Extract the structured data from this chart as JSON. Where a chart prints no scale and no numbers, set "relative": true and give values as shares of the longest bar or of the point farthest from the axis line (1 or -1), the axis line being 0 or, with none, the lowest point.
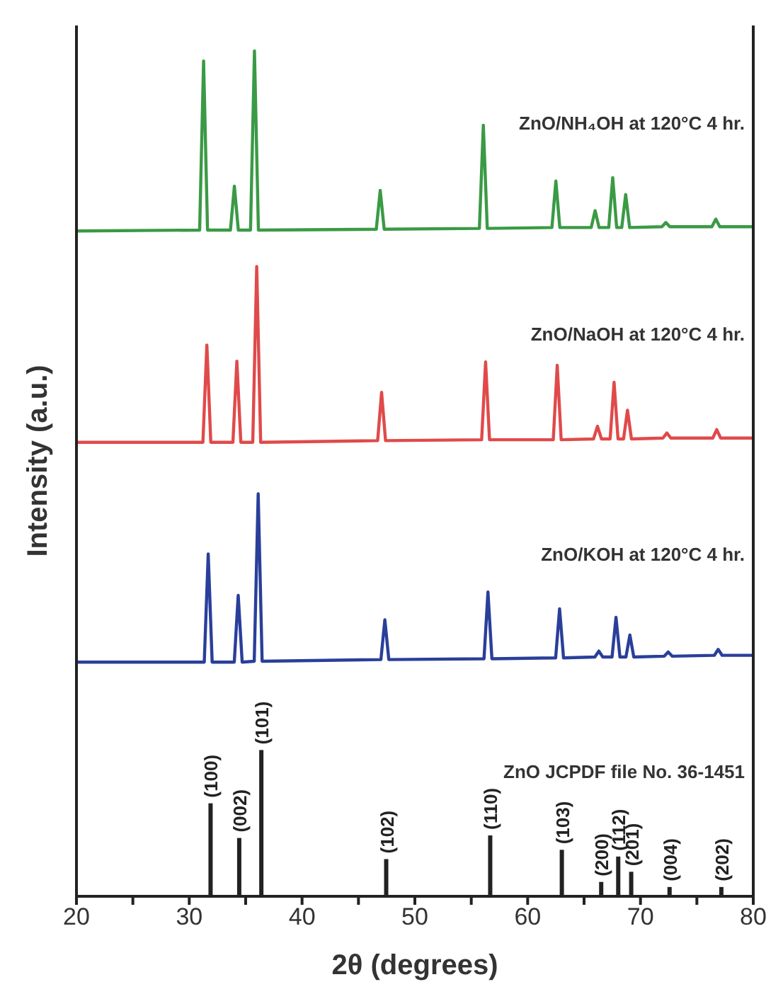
{
  "chart_data": {
    "type": "line",
    "relative": true,
    "xlabel": "2θ (degrees)",
    "ylabel": "Intensity (a.u.)",
    "xlim": [
      20,
      80
    ],
    "xticks": [
      20,
      {
        "value": 25,
        "label": null
      },
      30,
      {
        "value": 35,
        "label": null
      },
      40,
      {
        "value": 45,
        "label": null
      },
      50,
      {
        "value": 55,
        "label": null
      },
      60,
      {
        "value": 65,
        "label": null
      },
      70,
      {
        "value": 75,
        "label": null
      },
      80
    ],
    "legend": false,
    "grid": false,
    "marker": "none",
    "line_style": "solid",
    "series": [
      {
        "name": "ZnO/NH₄OH at 120°C 4 hr.",
        "color": "#3a9a45",
        "x": [
          20,
          30.92,
          31.27,
          31.62,
          33.65,
          34.0,
          34.35,
          35.43,
          35.78,
          36.13,
          46.58,
          46.93,
          47.28,
          55.72,
          56.07,
          56.42,
          62.15,
          62.5,
          62.85,
          65.63,
          65.98,
          66.33,
          67.19,
          67.54,
          67.89,
          68.34,
          68.69,
          69.04,
          71.9,
          72.25,
          72.6,
          76.33,
          76.68,
          77.03,
          80
        ],
        "values": [
          0.787,
          0.788,
          0.988,
          0.788,
          0.788,
          0.84,
          0.788,
          0.788,
          1.0,
          0.788,
          0.789,
          0.835,
          0.789,
          0.79,
          0.912,
          0.79,
          0.791,
          0.846,
          0.791,
          0.791,
          0.811,
          0.791,
          0.791,
          0.85,
          0.791,
          0.791,
          0.83,
          0.791,
          0.792,
          0.797,
          0.792,
          0.792,
          0.801,
          0.792,
          0.792
        ]
      },
      {
        "name": "ZnO/NaOH at 120°C 4 hr.",
        "color": "#e04a4a",
        "x": [
          20,
          31.21,
          31.56,
          31.91,
          33.87,
          34.22,
          34.57,
          35.63,
          35.98,
          36.33,
          46.7,
          47.05,
          47.4,
          55.92,
          56.27,
          56.62,
          62.27,
          62.62,
          62.97,
          65.84,
          66.19,
          66.54,
          67.31,
          67.66,
          68.01,
          68.5,
          68.85,
          69.2,
          71.99,
          72.34,
          72.69,
          76.41,
          76.76,
          77.11,
          80
        ],
        "values": [
          0.537,
          0.537,
          0.652,
          0.537,
          0.537,
          0.633,
          0.537,
          0.537,
          0.745,
          0.537,
          0.539,
          0.596,
          0.539,
          0.54,
          0.632,
          0.54,
          0.54,
          0.628,
          0.54,
          0.541,
          0.556,
          0.541,
          0.541,
          0.608,
          0.541,
          0.541,
          0.575,
          0.541,
          0.542,
          0.548,
          0.542,
          0.542,
          0.552,
          0.542,
          0.542
        ]
      },
      {
        "name": "ZnO/KOH at 120°C 4 hr.",
        "color": "#2a3f9a",
        "x": [
          20,
          31.33,
          31.68,
          32.03,
          33.99,
          34.34,
          34.69,
          35.76,
          36.11,
          36.46,
          46.99,
          47.34,
          47.69,
          56.13,
          56.48,
          56.83,
          62.48,
          62.83,
          63.18,
          65.96,
          66.31,
          66.66,
          67.48,
          67.83,
          68.18,
          68.71,
          69.06,
          69.41,
          72.11,
          72.46,
          72.81,
          76.54,
          76.89,
          77.24,
          80
        ],
        "values": [
          0.277,
          0.277,
          0.405,
          0.277,
          0.277,
          0.356,
          0.277,
          0.278,
          0.476,
          0.278,
          0.28,
          0.327,
          0.28,
          0.281,
          0.36,
          0.281,
          0.282,
          0.34,
          0.282,
          0.283,
          0.29,
          0.283,
          0.283,
          0.33,
          0.283,
          0.283,
          0.309,
          0.283,
          0.284,
          0.289,
          0.284,
          0.285,
          0.292,
          0.285,
          0.285
        ]
      },
      {
        "name": "ZnO JCPDF file No. 36-1451",
        "type": "bar",
        "color": "#222222",
        "x": [
          31.89,
          34.43,
          36.39,
          47.46,
          56.68,
          63.03,
          66.52,
          68.03,
          69.18,
          72.58,
          77.17
        ],
        "values": [
          0.11,
          0.069,
          0.173,
          0.044,
          0.072,
          0.055,
          0.017,
          0.047,
          0.029,
          0.011,
          0.011
        ]
      }
    ],
    "annotations": [
      {
        "text": "(100)",
        "x": 31.89,
        "y": 0.11
      },
      {
        "text": "(002)",
        "x": 34.43,
        "y": 0.069
      },
      {
        "text": "(101)",
        "x": 36.39,
        "y": 0.173
      },
      {
        "text": "(102)",
        "x": 47.46,
        "y": 0.044
      },
      {
        "text": "(110)",
        "x": 56.68,
        "y": 0.072
      },
      {
        "text": "(103)",
        "x": 63.03,
        "y": 0.055
      },
      {
        "text": "(200)",
        "x": 66.52,
        "y": 0.017
      },
      {
        "text": "(112)",
        "x": 68.03,
        "y": 0.047
      },
      {
        "text": "(201)",
        "x": 69.18,
        "y": 0.029
      },
      {
        "text": "(004)",
        "x": 72.58,
        "y": 0.011
      },
      {
        "text": "(202)",
        "x": 77.17,
        "y": 0.011
      }
    ]
  }
}
